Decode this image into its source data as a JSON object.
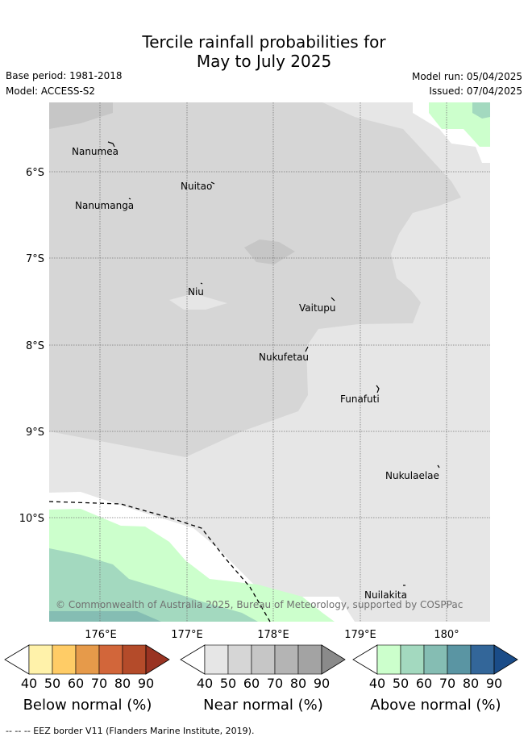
{
  "title_line1": "Tercile rainfall probabilities for",
  "title_line2": "May to July 2025",
  "base_period": "Base period: 1981-2018",
  "model": "Model: ACCESS-S2",
  "model_run": "Model run: 05/04/2025",
  "issued": "Issued: 07/04/2025",
  "lat_labels": [
    "6°S",
    "7°S",
    "8°S",
    "9°S",
    "10°S"
  ],
  "lon_labels": [
    "176°E",
    "177°E",
    "178°E",
    "179°E",
    "180°"
  ],
  "islands": [
    "Nanumea",
    "Nuitao",
    "Nanumanga",
    "Niu",
    "Vaitupu",
    "Nukufetau",
    "Funafuti",
    "Nukulaelae",
    "Nuilakita"
  ],
  "copyright": "© Commonwealth of Australia 2025, Bureau of Meteorology, supported by COSPPac",
  "colorbars": [
    {
      "caption": "Below normal (%)",
      "ticks": [
        "40",
        "50",
        "60",
        "70",
        "80",
        "90"
      ],
      "colors": [
        "#fff2aa",
        "#ffcc66",
        "#e69a4a",
        "#d2663a",
        "#b44b2a",
        "#993322"
      ]
    },
    {
      "caption": "Near normal (%)",
      "ticks": [
        "40",
        "50",
        "60",
        "70",
        "80",
        "90"
      ],
      "colors": [
        "#e6e6e6",
        "#d6d6d6",
        "#c6c6c6",
        "#b4b4b4",
        "#a3a3a3",
        "#8a8a8a"
      ]
    },
    {
      "caption": "Above normal (%)",
      "ticks": [
        "40",
        "50",
        "60",
        "70",
        "80",
        "90"
      ],
      "colors": [
        "#ccffcc",
        "#a3d9bf",
        "#85bdb3",
        "#5a95a3",
        "#336699",
        "#1a4c88"
      ]
    }
  ],
  "footer": "--  --  -- EEZ border V11 (Flanders Marine Institute, 2019)."
}
